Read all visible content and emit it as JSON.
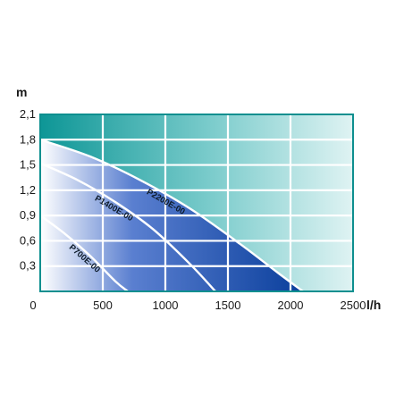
{
  "chart_data": {
    "type": "area",
    "xlabel": "l/h",
    "ylabel": "m",
    "xlim": [
      0,
      2500
    ],
    "ylim": [
      0,
      2.1
    ],
    "x_ticks": [
      "0",
      "500",
      "1000",
      "1500",
      "2000",
      "2500"
    ],
    "y_ticks": [
      "0,3",
      "0,6",
      "0,9",
      "1,2",
      "1,5",
      "1,8",
      "2,1"
    ],
    "grid": true,
    "series": [
      {
        "name": "P700E-00",
        "x": [
          0,
          200,
          400,
          600,
          700
        ],
        "y": [
          0.9,
          0.68,
          0.42,
          0.12,
          0
        ]
      },
      {
        "name": "P1400E-00",
        "x": [
          0,
          300,
          600,
          900,
          1200,
          1400
        ],
        "y": [
          1.52,
          1.32,
          1.06,
          0.74,
          0.32,
          0
        ]
      },
      {
        "name": "P2200E-00",
        "x": [
          0,
          400,
          800,
          1200,
          1600,
          1900,
          2100
        ],
        "y": [
          1.8,
          1.6,
          1.32,
          0.98,
          0.56,
          0.22,
          0
        ]
      }
    ],
    "colors": {
      "background_dark": "#0f9a9a",
      "background_light": "#d8f0f0",
      "fill_dark": "#0a3f9c",
      "fill_light": "#ffffff",
      "grid": "#ffffff"
    }
  }
}
